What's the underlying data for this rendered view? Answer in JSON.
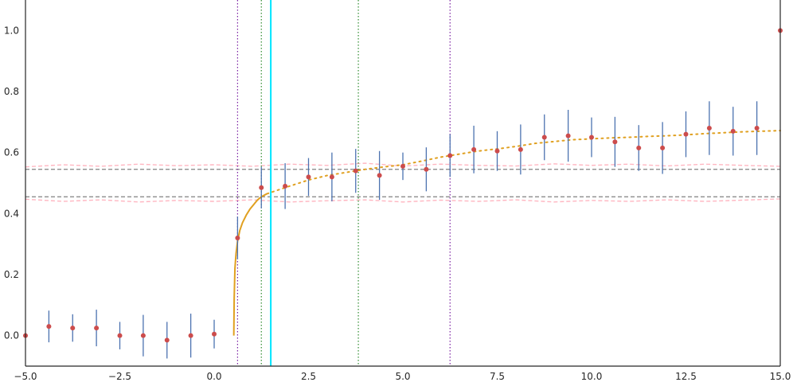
{
  "chart_data": {
    "type": "scatter",
    "title": "",
    "xlabel": "",
    "ylabel": "",
    "xlim": [
      -5.0,
      15.0
    ],
    "ylim": [
      -0.1,
      1.1
    ],
    "grid": false,
    "x_ticks": [
      -5.0,
      -2.5,
      0.0,
      2.5,
      5.0,
      7.5,
      10.0,
      12.5,
      15.0
    ],
    "x_tick_labels": [
      "−5.0",
      "−2.5",
      "0.0",
      "2.5",
      "5.0",
      "7.5",
      "10.0",
      "12.5",
      "15.0"
    ],
    "y_ticks": [
      0.0,
      0.2,
      0.4,
      0.6,
      0.8,
      1.0
    ],
    "y_tick_labels": [
      "0.0",
      "0.2",
      "0.4",
      "0.6",
      "0.8",
      "1.0"
    ],
    "series": [
      {
        "kind": "points_with_errorbars",
        "marker_color": "#cc4c4c",
        "errorbar_color": "#4c72b0",
        "points": [
          {
            "x": -5.0,
            "y": 0.0,
            "err": 0.0
          },
          {
            "x": -4.38,
            "y": 0.03,
            "err": 0.052
          },
          {
            "x": -3.75,
            "y": 0.025,
            "err": 0.045
          },
          {
            "x": -3.12,
            "y": 0.025,
            "err": 0.06
          },
          {
            "x": -2.5,
            "y": 0.0,
            "err": 0.045
          },
          {
            "x": -1.88,
            "y": 0.0,
            "err": 0.068
          },
          {
            "x": -1.25,
            "y": -0.015,
            "err": 0.06
          },
          {
            "x": -0.62,
            "y": 0.0,
            "err": 0.072
          },
          {
            "x": 0.0,
            "y": 0.005,
            "err": 0.047
          },
          {
            "x": 0.62,
            "y": 0.32,
            "err": 0.07
          },
          {
            "x": 1.25,
            "y": 0.485,
            "err": 0.068
          },
          {
            "x": 1.88,
            "y": 0.49,
            "err": 0.075
          },
          {
            "x": 2.5,
            "y": 0.52,
            "err": 0.062
          },
          {
            "x": 3.12,
            "y": 0.52,
            "err": 0.08
          },
          {
            "x": 3.75,
            "y": 0.54,
            "err": 0.072
          },
          {
            "x": 4.38,
            "y": 0.525,
            "err": 0.08
          },
          {
            "x": 5.0,
            "y": 0.555,
            "err": 0.045
          },
          {
            "x": 5.62,
            "y": 0.545,
            "err": 0.072
          },
          {
            "x": 6.25,
            "y": 0.59,
            "err": 0.07
          },
          {
            "x": 6.88,
            "y": 0.61,
            "err": 0.078
          },
          {
            "x": 7.5,
            "y": 0.605,
            "err": 0.065
          },
          {
            "x": 8.12,
            "y": 0.61,
            "err": 0.082
          },
          {
            "x": 8.75,
            "y": 0.65,
            "err": 0.075
          },
          {
            "x": 9.38,
            "y": 0.655,
            "err": 0.085
          },
          {
            "x": 10.0,
            "y": 0.65,
            "err": 0.065
          },
          {
            "x": 10.62,
            "y": 0.635,
            "err": 0.082
          },
          {
            "x": 11.25,
            "y": 0.615,
            "err": 0.075
          },
          {
            "x": 11.88,
            "y": 0.615,
            "err": 0.085
          },
          {
            "x": 12.5,
            "y": 0.66,
            "err": 0.075
          },
          {
            "x": 13.12,
            "y": 0.68,
            "err": 0.088
          },
          {
            "x": 13.75,
            "y": 0.67,
            "err": 0.08
          },
          {
            "x": 14.38,
            "y": 0.68,
            "err": 0.088
          },
          {
            "x": 15.0,
            "y": 1.0,
            "err": 0.0
          }
        ]
      },
      {
        "kind": "solid_curve",
        "color": "#e0a020",
        "x": [
          0.52,
          0.53,
          0.55,
          0.58,
          0.62,
          0.68,
          0.75,
          0.85,
          0.95,
          1.05,
          1.15,
          1.25,
          1.4
        ],
        "y": [
          0.0,
          0.12,
          0.22,
          0.27,
          0.31,
          0.345,
          0.37,
          0.395,
          0.415,
          0.43,
          0.445,
          0.455,
          0.465
        ]
      },
      {
        "kind": "dotted_curve",
        "color": "#e0a020",
        "x": [
          1.4,
          2.0,
          2.5,
          3.0,
          3.5,
          4.0,
          4.5,
          5.0,
          5.5,
          6.0,
          6.5,
          7.0,
          7.5,
          8.0,
          8.5,
          9.0,
          9.5,
          10.0,
          10.5,
          11.0,
          11.5,
          12.0,
          12.5,
          13.0,
          13.5,
          14.0,
          14.5,
          15.0
        ],
        "y": [
          0.465,
          0.49,
          0.51,
          0.525,
          0.535,
          0.545,
          0.553,
          0.56,
          0.572,
          0.585,
          0.595,
          0.605,
          0.612,
          0.62,
          0.63,
          0.636,
          0.642,
          0.645,
          0.648,
          0.65,
          0.653,
          0.655,
          0.658,
          0.662,
          0.665,
          0.668,
          0.67,
          0.672
        ]
      }
    ],
    "horizontal_lines": [
      {
        "y": 0.545,
        "color": "#808080",
        "style": "dashed"
      },
      {
        "y": 0.455,
        "color": "#808080",
        "style": "dashed"
      }
    ],
    "band_curves": [
      {
        "color": "#ffb6c1",
        "style": "dashed",
        "x": [
          -5.0,
          -4.0,
          -3.0,
          -2.0,
          -1.0,
          0.0,
          1.0,
          2.0,
          3.0,
          4.0,
          5.0,
          6.0,
          7.0,
          8.0,
          9.0,
          10.0,
          11.0,
          12.0,
          13.0,
          14.0,
          15.0
        ],
        "y": [
          0.553,
          0.56,
          0.555,
          0.562,
          0.557,
          0.56,
          0.555,
          0.562,
          0.558,
          0.565,
          0.556,
          0.562,
          0.558,
          0.556,
          0.563,
          0.558,
          0.562,
          0.556,
          0.562,
          0.558,
          0.555
        ]
      },
      {
        "color": "#ffb6c1",
        "style": "dashed",
        "x": [
          -5.0,
          -4.0,
          -3.0,
          -2.0,
          -1.0,
          0.0,
          1.0,
          2.0,
          3.0,
          4.0,
          5.0,
          6.0,
          7.0,
          8.0,
          9.0,
          10.0,
          11.0,
          12.0,
          13.0,
          14.0,
          15.0
        ],
        "y": [
          0.447,
          0.44,
          0.445,
          0.438,
          0.443,
          0.44,
          0.445,
          0.438,
          0.442,
          0.445,
          0.438,
          0.444,
          0.44,
          0.445,
          0.438,
          0.443,
          0.44,
          0.445,
          0.44,
          0.444,
          0.448
        ]
      }
    ],
    "vertical_lines": [
      {
        "x": 0.62,
        "color": "#7a1fa2",
        "style": "dotted"
      },
      {
        "x": 1.25,
        "color": "#2e8b2e",
        "style": "dotted"
      },
      {
        "x": 1.5,
        "color": "#00e5ff",
        "style": "solid"
      },
      {
        "x": 3.82,
        "color": "#2e8b2e",
        "style": "dotted"
      },
      {
        "x": 6.25,
        "color": "#7a1fa2",
        "style": "dotted"
      }
    ]
  }
}
